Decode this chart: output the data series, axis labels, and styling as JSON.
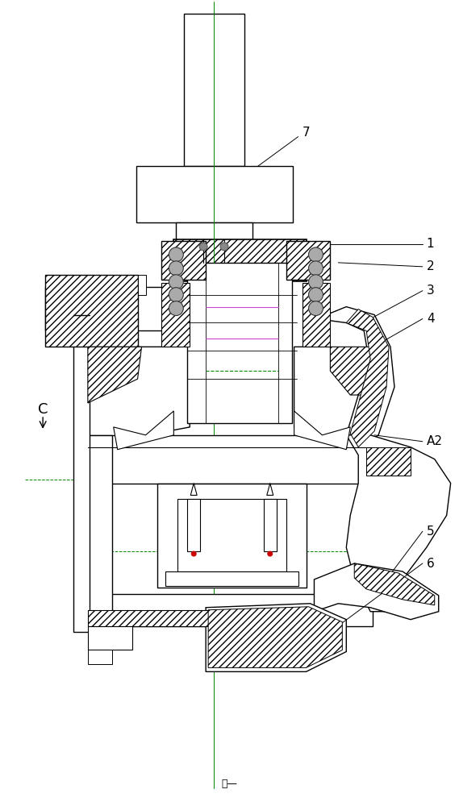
{
  "bg_color": "#ffffff",
  "lc": "#000000",
  "clc": "#008800",
  "figsize": [
    5.69,
    10.0
  ],
  "dpi": 100,
  "title_text": "图—"
}
